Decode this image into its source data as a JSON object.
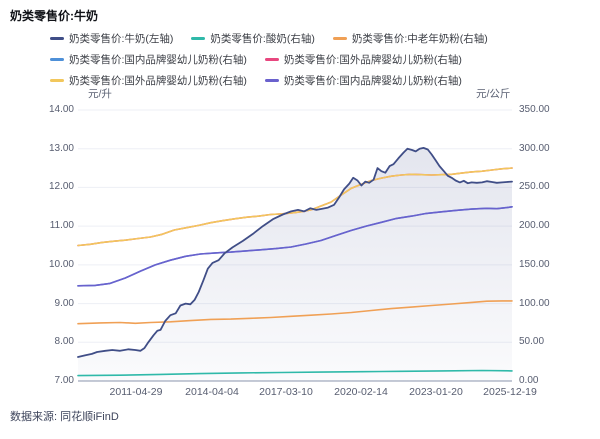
{
  "title": "奶类零售价:牛奶",
  "footer": {
    "source": "数据来源: 同花顺iFinD"
  },
  "legend": [
    {
      "label": "奶类零售价:牛奶(左轴)",
      "color": "#404e87"
    },
    {
      "label": "奶类零售价:酸奶(右轴)",
      "color": "#2fb9a9"
    },
    {
      "label": "奶类零售价:中老年奶粉(右轴)",
      "color": "#f0a055"
    },
    {
      "label": "奶类零售价:国内品牌婴幼儿奶粉(右轴)",
      "color": "#4e90d8"
    },
    {
      "label": "奶类零售价:国外品牌婴幼儿奶粉(右轴)",
      "color": "#e8477f"
    },
    {
      "label": "奶类零售价:国外品牌婴幼儿奶粉(右轴)",
      "color": "#f2c75c"
    },
    {
      "label": "奶类零售价:国内品牌婴幼儿奶粉(右轴)",
      "color": "#6a61cd"
    }
  ],
  "chart_data": {
    "type": "line",
    "title": "奶类零售价:牛奶",
    "grid": true,
    "legend_position": "top",
    "left_axis": {
      "unit": "元/升",
      "min": 7,
      "max": 14,
      "ticks": [
        "14.00",
        "13.00",
        "12.00",
        "11.00",
        "10.00",
        "9.00",
        "8.00",
        "7.00"
      ]
    },
    "right_axis": {
      "unit": "元/公斤",
      "min": 0,
      "max": 350,
      "ticks": [
        "350.00",
        "300.00",
        "250.00",
        "200.00",
        "150.00",
        "100.00",
        "50.00",
        "0.00"
      ]
    },
    "x_labels": [
      "2011-04-29",
      "2014-04-04",
      "2017-03-10",
      "2020-02-14",
      "2023-01-20",
      "2025-12-19"
    ],
    "series": [
      {
        "name": "奶类零售价:酸奶(右轴)",
        "axis": "right",
        "color": "#2fb9a9",
        "width": 1.6,
        "points": [
          [
            0,
            7
          ],
          [
            0.097,
            7.5
          ],
          [
            0.19,
            8.5
          ],
          [
            0.282,
            9.5
          ],
          [
            0.375,
            10.5
          ],
          [
            0.468,
            11
          ],
          [
            0.56,
            11.5
          ],
          [
            0.653,
            12
          ],
          [
            0.745,
            12.5
          ],
          [
            0.838,
            13
          ],
          [
            0.931,
            13.5
          ],
          [
            1,
            13
          ]
        ]
      },
      {
        "name": "奶类零售价:中老年奶粉(右轴)",
        "axis": "right",
        "color": "#f0a055",
        "width": 1.6,
        "points": [
          [
            0,
            74
          ],
          [
            0.051,
            75
          ],
          [
            0.097,
            75.5
          ],
          [
            0.132,
            74.5
          ],
          [
            0.167,
            75.5
          ],
          [
            0.213,
            76.5
          ],
          [
            0.259,
            78
          ],
          [
            0.306,
            79.5
          ],
          [
            0.352,
            80
          ],
          [
            0.398,
            81
          ],
          [
            0.444,
            82
          ],
          [
            0.491,
            83.5
          ],
          [
            0.537,
            85
          ],
          [
            0.583,
            86.5
          ],
          [
            0.63,
            88.5
          ],
          [
            0.676,
            91
          ],
          [
            0.722,
            93.5
          ],
          [
            0.769,
            95.5
          ],
          [
            0.815,
            97.5
          ],
          [
            0.861,
            99.5
          ],
          [
            0.907,
            101.5
          ],
          [
            0.942,
            103
          ],
          [
            0.977,
            103.5
          ],
          [
            1,
            103.5
          ]
        ]
      },
      {
        "name": "奶类零售价:国内品牌婴幼儿奶粉(右轴)",
        "axis": "right",
        "color": "#4e90d8",
        "width": 1.6,
        "hidden_behind": "奶类零售价:国内品牌婴幼儿奶粉(右轴)",
        "points": [
          [
            0,
            123
          ],
          [
            0.039,
            123.5
          ],
          [
            0.074,
            126
          ],
          [
            0.109,
            133
          ],
          [
            0.144,
            142
          ],
          [
            0.178,
            150
          ],
          [
            0.213,
            156
          ],
          [
            0.248,
            161
          ],
          [
            0.282,
            164
          ],
          [
            0.317,
            165.5
          ],
          [
            0.352,
            166.5
          ],
          [
            0.387,
            168
          ],
          [
            0.421,
            169.5
          ],
          [
            0.456,
            171
          ],
          [
            0.491,
            173
          ],
          [
            0.525,
            177
          ],
          [
            0.56,
            181.5
          ],
          [
            0.595,
            188
          ],
          [
            0.63,
            194.5
          ],
          [
            0.664,
            200
          ],
          [
            0.699,
            205
          ],
          [
            0.734,
            210
          ],
          [
            0.769,
            213
          ],
          [
            0.803,
            216.5
          ],
          [
            0.838,
            218.5
          ],
          [
            0.873,
            220.5
          ],
          [
            0.907,
            222
          ],
          [
            0.942,
            223
          ],
          [
            0.965,
            222.5
          ],
          [
            0.988,
            224
          ],
          [
            1,
            225
          ]
        ]
      },
      {
        "name": "奶类零售价:国外品牌婴幼儿奶粉(右轴)",
        "axis": "right",
        "color": "#e8477f",
        "width": 1.6,
        "hidden_behind": "奶类零售价:国外品牌婴幼儿奶粉(右轴)",
        "points": [
          [
            0,
            175
          ],
          [
            0.028,
            176.5
          ],
          [
            0.056,
            179
          ],
          [
            0.083,
            180.5
          ],
          [
            0.111,
            182
          ],
          [
            0.139,
            184
          ],
          [
            0.167,
            186
          ],
          [
            0.194,
            189.5
          ],
          [
            0.222,
            195
          ],
          [
            0.25,
            198
          ],
          [
            0.278,
            201
          ],
          [
            0.306,
            204.5
          ],
          [
            0.333,
            207
          ],
          [
            0.361,
            209.5
          ],
          [
            0.389,
            211.5
          ],
          [
            0.417,
            213
          ],
          [
            0.444,
            215
          ],
          [
            0.472,
            216
          ],
          [
            0.5,
            217.5
          ],
          [
            0.519,
            219
          ],
          [
            0.537,
            221
          ],
          [
            0.56,
            226
          ],
          [
            0.583,
            231
          ],
          [
            0.606,
            240
          ],
          [
            0.63,
            249
          ],
          [
            0.653,
            254
          ],
          [
            0.676,
            259
          ],
          [
            0.699,
            262
          ],
          [
            0.722,
            264.5
          ],
          [
            0.745,
            266
          ],
          [
            0.769,
            267
          ],
          [
            0.792,
            266.5
          ],
          [
            0.815,
            266
          ],
          [
            0.838,
            266.5
          ],
          [
            0.861,
            267
          ],
          [
            0.884,
            268.5
          ],
          [
            0.907,
            270
          ],
          [
            0.931,
            271
          ],
          [
            0.954,
            272.5
          ],
          [
            0.977,
            274
          ],
          [
            1,
            275
          ]
        ]
      },
      {
        "name": "奶类零售价:国外品牌婴幼儿奶粉(右轴)",
        "axis": "right",
        "color": "#f2c75c",
        "width": 1.6,
        "points": [
          [
            0,
            175
          ],
          [
            0.028,
            176.5
          ],
          [
            0.056,
            179
          ],
          [
            0.083,
            180.5
          ],
          [
            0.111,
            182
          ],
          [
            0.139,
            184
          ],
          [
            0.167,
            186
          ],
          [
            0.194,
            189.5
          ],
          [
            0.222,
            195
          ],
          [
            0.25,
            198
          ],
          [
            0.278,
            201
          ],
          [
            0.306,
            204.5
          ],
          [
            0.333,
            207
          ],
          [
            0.361,
            209.5
          ],
          [
            0.389,
            211.5
          ],
          [
            0.417,
            213
          ],
          [
            0.444,
            215
          ],
          [
            0.472,
            216
          ],
          [
            0.5,
            217.5
          ],
          [
            0.519,
            219
          ],
          [
            0.537,
            221
          ],
          [
            0.56,
            226
          ],
          [
            0.583,
            231
          ],
          [
            0.606,
            240
          ],
          [
            0.63,
            249
          ],
          [
            0.653,
            254
          ],
          [
            0.676,
            259
          ],
          [
            0.699,
            262
          ],
          [
            0.722,
            264.5
          ],
          [
            0.745,
            266
          ],
          [
            0.769,
            267
          ],
          [
            0.792,
            266.5
          ],
          [
            0.815,
            266
          ],
          [
            0.838,
            266.5
          ],
          [
            0.861,
            267
          ],
          [
            0.884,
            268.5
          ],
          [
            0.907,
            270
          ],
          [
            0.931,
            271
          ],
          [
            0.954,
            272.5
          ],
          [
            0.977,
            274
          ],
          [
            1,
            275
          ]
        ]
      },
      {
        "name": "奶类零售价:国内品牌婴幼儿奶粉(右轴)",
        "axis": "right",
        "color": "#6a61cd",
        "width": 1.6,
        "points": [
          [
            0,
            123
          ],
          [
            0.039,
            123.5
          ],
          [
            0.074,
            126
          ],
          [
            0.109,
            133
          ],
          [
            0.144,
            142
          ],
          [
            0.178,
            150
          ],
          [
            0.213,
            156
          ],
          [
            0.248,
            161
          ],
          [
            0.282,
            164
          ],
          [
            0.317,
            165.5
          ],
          [
            0.352,
            166.5
          ],
          [
            0.387,
            168
          ],
          [
            0.421,
            169.5
          ],
          [
            0.456,
            171
          ],
          [
            0.491,
            173
          ],
          [
            0.525,
            177
          ],
          [
            0.56,
            181.5
          ],
          [
            0.595,
            188
          ],
          [
            0.63,
            194.5
          ],
          [
            0.664,
            200
          ],
          [
            0.699,
            205
          ],
          [
            0.734,
            210
          ],
          [
            0.769,
            213
          ],
          [
            0.803,
            216.5
          ],
          [
            0.838,
            218.5
          ],
          [
            0.873,
            220.5
          ],
          [
            0.907,
            222
          ],
          [
            0.942,
            223
          ],
          [
            0.965,
            222.5
          ],
          [
            0.988,
            224
          ],
          [
            1,
            225
          ]
        ]
      },
      {
        "name": "奶类零售价:牛奶(左轴)",
        "axis": "left",
        "color": "#404e87",
        "width": 1.8,
        "area": true,
        "points": [
          [
            0,
            7.62
          ],
          [
            0.016,
            7.66
          ],
          [
            0.032,
            7.7
          ],
          [
            0.044,
            7.75
          ],
          [
            0.063,
            7.78
          ],
          [
            0.079,
            7.8
          ],
          [
            0.097,
            7.78
          ],
          [
            0.116,
            7.82
          ],
          [
            0.132,
            7.8
          ],
          [
            0.144,
            7.78
          ],
          [
            0.153,
            7.85
          ],
          [
            0.162,
            8
          ],
          [
            0.174,
            8.18
          ],
          [
            0.183,
            8.3
          ],
          [
            0.19,
            8.32
          ],
          [
            0.201,
            8.55
          ],
          [
            0.213,
            8.7
          ],
          [
            0.225,
            8.75
          ],
          [
            0.236,
            8.95
          ],
          [
            0.248,
            9
          ],
          [
            0.259,
            8.98
          ],
          [
            0.269,
            9.1
          ],
          [
            0.278,
            9.3
          ],
          [
            0.289,
            9.6
          ],
          [
            0.299,
            9.9
          ],
          [
            0.31,
            10.05
          ],
          [
            0.324,
            10.12
          ],
          [
            0.338,
            10.3
          ],
          [
            0.356,
            10.45
          ],
          [
            0.38,
            10.62
          ],
          [
            0.403,
            10.8
          ],
          [
            0.426,
            11
          ],
          [
            0.449,
            11.18
          ],
          [
            0.472,
            11.3
          ],
          [
            0.491,
            11.38
          ],
          [
            0.507,
            11.42
          ],
          [
            0.521,
            11.38
          ],
          [
            0.535,
            11.46
          ],
          [
            0.549,
            11.42
          ],
          [
            0.563,
            11.45
          ],
          [
            0.576,
            11.48
          ],
          [
            0.59,
            11.55
          ],
          [
            0.602,
            11.75
          ],
          [
            0.613,
            11.95
          ],
          [
            0.625,
            12.1
          ],
          [
            0.634,
            12.25
          ],
          [
            0.644,
            12.18
          ],
          [
            0.653,
            12.05
          ],
          [
            0.662,
            12.15
          ],
          [
            0.671,
            12.12
          ],
          [
            0.681,
            12.2
          ],
          [
            0.69,
            12.5
          ],
          [
            0.699,
            12.42
          ],
          [
            0.708,
            12.38
          ],
          [
            0.718,
            12.55
          ],
          [
            0.727,
            12.6
          ],
          [
            0.738,
            12.75
          ],
          [
            0.75,
            12.9
          ],
          [
            0.759,
            13
          ],
          [
            0.769,
            12.97
          ],
          [
            0.778,
            12.93
          ],
          [
            0.787,
            13
          ],
          [
            0.796,
            13.02
          ],
          [
            0.806,
            12.98
          ],
          [
            0.815,
            12.85
          ],
          [
            0.824,
            12.7
          ],
          [
            0.833,
            12.55
          ],
          [
            0.843,
            12.42
          ],
          [
            0.852,
            12.3
          ],
          [
            0.861,
            12.25
          ],
          [
            0.87,
            12.18
          ],
          [
            0.88,
            12.13
          ],
          [
            0.889,
            12.17
          ],
          [
            0.898,
            12.11
          ],
          [
            0.907,
            12.13
          ],
          [
            0.919,
            12.12
          ],
          [
            0.931,
            12.13
          ],
          [
            0.942,
            12.16
          ],
          [
            0.954,
            12.14
          ],
          [
            0.965,
            12.12
          ],
          [
            0.977,
            12.13
          ],
          [
            0.988,
            12.14
          ],
          [
            1,
            12.15
          ]
        ]
      }
    ]
  }
}
